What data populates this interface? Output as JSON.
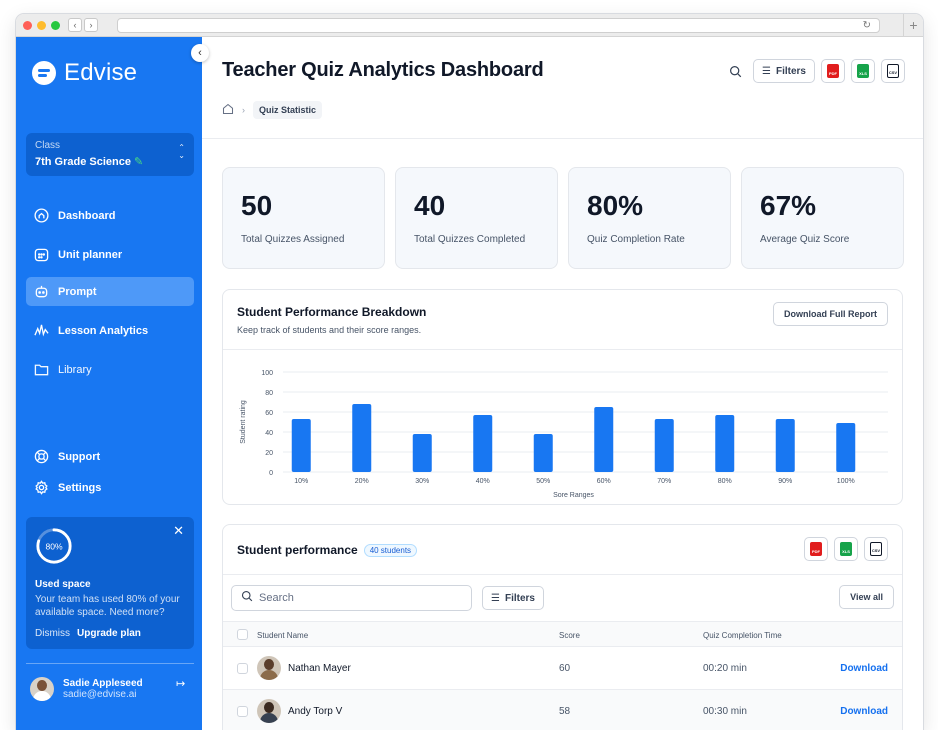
{
  "app": {
    "name": "Edvise"
  },
  "sidebar": {
    "class_label": "Class",
    "class_value": "7th Grade Science",
    "nav": [
      {
        "label": "Dashboard",
        "icon": "home-icon"
      },
      {
        "label": "Unit planner",
        "icon": "calendar-icon"
      },
      {
        "label": "Prompt",
        "icon": "robot-icon",
        "active": true
      },
      {
        "label": "Lesson Analytics",
        "icon": "analytics-icon"
      },
      {
        "label": "Library",
        "icon": "folder-icon"
      }
    ],
    "support_label": "Support",
    "settings_label": "Settings",
    "usage": {
      "percent_label": "80%",
      "percent": 80,
      "title": "Used space",
      "desc": "Your team has used 80% of your available space. Need more?",
      "dismiss": "Dismiss",
      "upgrade": "Upgrade plan"
    },
    "user": {
      "name": "Sadie Appleseed",
      "email": "sadie@edvise.ai"
    }
  },
  "header": {
    "title": "Teacher Quiz Analytics Dashboard",
    "breadcrumb_current": "Quiz Statistic",
    "filters_label": "Filters"
  },
  "stats": [
    {
      "value": "50",
      "label": "Total Quizzes Assigned"
    },
    {
      "value": "40",
      "label": "Total Quizzes Completed"
    },
    {
      "value": "80%",
      "label": "Quiz Completion Rate"
    },
    {
      "value": "67%",
      "label": "Average Quiz Score"
    }
  ],
  "performance_card": {
    "title": "Student Performance Breakdown",
    "subtitle": "Keep track of students and their score ranges.",
    "download_label": "Download Full Report"
  },
  "chart_data": {
    "type": "bar",
    "categories": [
      "10%",
      "20%",
      "30%",
      "40%",
      "50%",
      "60%",
      "70%",
      "80%",
      "90%",
      "100%"
    ],
    "values": [
      53,
      68,
      38,
      57,
      38,
      65,
      53,
      57,
      53,
      49
    ],
    "xlabel": "Sore Ranges",
    "ylabel": "Student rating",
    "ylim": [
      0,
      100
    ],
    "yticks": [
      0,
      20,
      40,
      60,
      80,
      100
    ],
    "grid": true,
    "color": "#1877f2"
  },
  "table_card": {
    "title": "Student performance",
    "badge": "40 students",
    "search_placeholder": "Search",
    "filters_label": "Filters",
    "view_all": "View all",
    "columns": [
      "Student Name",
      "Score",
      "Quiz Completion Time"
    ],
    "rows": [
      {
        "name": "Nathan Mayer",
        "score": "60",
        "time": "00:20 min",
        "action": "Download"
      },
      {
        "name": "Andy Torp V",
        "score": "58",
        "time": "00:30 min",
        "action": "Download"
      }
    ]
  },
  "colors": {
    "brand": "#1877f2",
    "pdf": "#e11d1d",
    "xls": "#16a34a"
  }
}
